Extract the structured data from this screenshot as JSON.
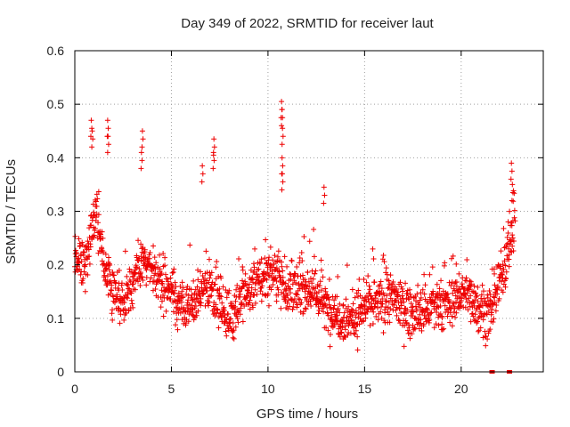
{
  "chart_data": {
    "type": "scatter",
    "title": "Day 349 of 2022, SRMTID for receiver laut",
    "xlabel": "GPS time / hours",
    "ylabel": "SRMTID / TECUs",
    "xlim": [
      0,
      24.25
    ],
    "ylim": [
      0,
      0.6
    ],
    "xticks": [
      0,
      5,
      10,
      15,
      20
    ],
    "xtick_labels": [
      "0",
      "5",
      "10",
      "15",
      "20"
    ],
    "yticks": [
      0,
      0.1,
      0.2,
      0.3,
      0.4,
      0.5,
      0.6
    ],
    "ytick_labels": [
      "0",
      "0.1",
      "0.2",
      "0.3",
      "0.4",
      "0.5",
      "0.6"
    ],
    "grid": true,
    "marker": "plus",
    "color": "#ee0000",
    "series": [
      {
        "name": "SRMTID",
        "description": "mean trend of dense scatter (x hours, y TECUs)",
        "trend": [
          [
            0.0,
            0.22
          ],
          [
            0.3,
            0.21
          ],
          [
            0.6,
            0.2
          ],
          [
            0.9,
            0.29
          ],
          [
            1.2,
            0.27
          ],
          [
            1.6,
            0.18
          ],
          [
            2.0,
            0.15
          ],
          [
            2.5,
            0.13
          ],
          [
            3.0,
            0.17
          ],
          [
            3.5,
            0.2
          ],
          [
            4.0,
            0.19
          ],
          [
            4.5,
            0.17
          ],
          [
            5.0,
            0.15
          ],
          [
            5.5,
            0.12
          ],
          [
            6.0,
            0.12
          ],
          [
            6.5,
            0.15
          ],
          [
            7.0,
            0.16
          ],
          [
            7.5,
            0.13
          ],
          [
            8.0,
            0.1
          ],
          [
            8.5,
            0.13
          ],
          [
            9.0,
            0.15
          ],
          [
            9.5,
            0.17
          ],
          [
            10.0,
            0.18
          ],
          [
            10.5,
            0.19
          ],
          [
            11.0,
            0.15
          ],
          [
            11.5,
            0.15
          ],
          [
            12.0,
            0.16
          ],
          [
            12.5,
            0.15
          ],
          [
            13.0,
            0.12
          ],
          [
            13.5,
            0.11
          ],
          [
            14.0,
            0.1
          ],
          [
            14.5,
            0.1
          ],
          [
            15.0,
            0.12
          ],
          [
            15.5,
            0.13
          ],
          [
            16.0,
            0.13
          ],
          [
            16.5,
            0.14
          ],
          [
            17.0,
            0.12
          ],
          [
            17.5,
            0.11
          ],
          [
            18.0,
            0.11
          ],
          [
            18.5,
            0.12
          ],
          [
            19.0,
            0.12
          ],
          [
            19.5,
            0.13
          ],
          [
            20.0,
            0.15
          ],
          [
            20.5,
            0.14
          ],
          [
            21.0,
            0.12
          ],
          [
            21.5,
            0.1
          ],
          [
            22.0,
            0.17
          ],
          [
            22.5,
            0.24
          ],
          [
            22.8,
            0.28
          ]
        ],
        "spikes": [
          [
            0.85,
            0.47
          ],
          [
            0.9,
            0.45
          ],
          [
            1.7,
            0.47
          ],
          [
            1.72,
            0.44
          ],
          [
            3.5,
            0.45
          ],
          [
            3.45,
            0.41
          ],
          [
            6.6,
            0.385
          ],
          [
            7.2,
            0.435
          ],
          [
            7.18,
            0.41
          ],
          [
            10.7,
            0.505
          ],
          [
            10.72,
            0.49
          ],
          [
            10.75,
            0.455
          ],
          [
            10.73,
            0.4
          ],
          [
            10.74,
            0.37
          ],
          [
            12.9,
            0.345
          ],
          [
            22.6,
            0.39
          ],
          [
            22.65,
            0.35
          ]
        ],
        "zeros": [
          [
            21.6,
            0.0
          ],
          [
            22.5,
            0.0
          ]
        ],
        "gap_hours": [
          [
            23.0,
            24.25
          ]
        ]
      }
    ]
  }
}
